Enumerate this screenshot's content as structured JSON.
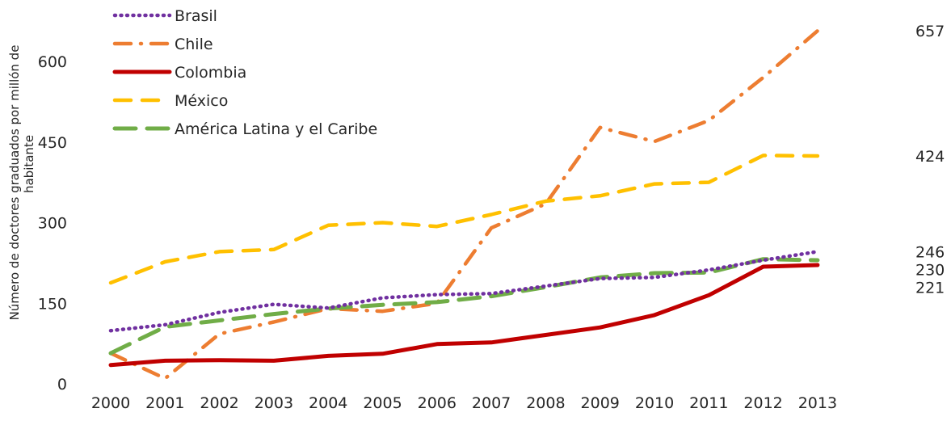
{
  "chart_data": {
    "type": "line",
    "ylabel_line1": "Número de doctores graduados por millón de",
    "ylabel_line2": "habitante",
    "xlabel": "",
    "categories": [
      "2000",
      "2001",
      "2002",
      "2003",
      "2004",
      "2005",
      "2006",
      "2007",
      "2008",
      "2009",
      "2010",
      "2011",
      "2012",
      "2013"
    ],
    "ylim": [
      0,
      660
    ],
    "yticks": [
      0,
      150,
      300,
      450,
      600
    ],
    "grid": false,
    "legend_position": "top-left",
    "series": [
      {
        "name": "Brasil",
        "color": "#7030A0",
        "style": "dotted",
        "values": [
          99,
          110,
          133,
          148,
          141,
          160,
          166,
          168,
          182,
          196,
          198,
          212,
          230,
          246
        ]
      },
      {
        "name": "Chile",
        "color": "#ED7D31",
        "style": "dash-dot",
        "values": [
          57,
          10,
          93,
          115,
          140,
          135,
          150,
          290,
          335,
          477,
          451,
          490,
          570,
          657
        ]
      },
      {
        "name": "Colombia",
        "color": "#C00000",
        "style": "solid",
        "values": [
          35,
          43,
          44,
          43,
          52,
          56,
          74,
          77,
          91,
          105,
          128,
          165,
          218,
          221
        ]
      },
      {
        "name": "México",
        "color": "#FFC000",
        "style": "dashed",
        "values": [
          188,
          227,
          246,
          250,
          295,
          300,
          293,
          315,
          340,
          350,
          372,
          375,
          425,
          424
        ]
      },
      {
        "name": "América Latina y el Caribe",
        "color": "#70AD47",
        "style": "long-dash",
        "values": [
          57,
          106,
          118,
          130,
          140,
          147,
          152,
          163,
          180,
          198,
          206,
          207,
          232,
          230
        ]
      }
    ],
    "end_labels": [
      {
        "text": "657",
        "value": 657
      },
      {
        "text": "424",
        "value": 424
      },
      {
        "text": "246",
        "value": 246
      },
      {
        "text": "230",
        "value": 230
      },
      {
        "text": "221",
        "value": 221
      }
    ]
  }
}
